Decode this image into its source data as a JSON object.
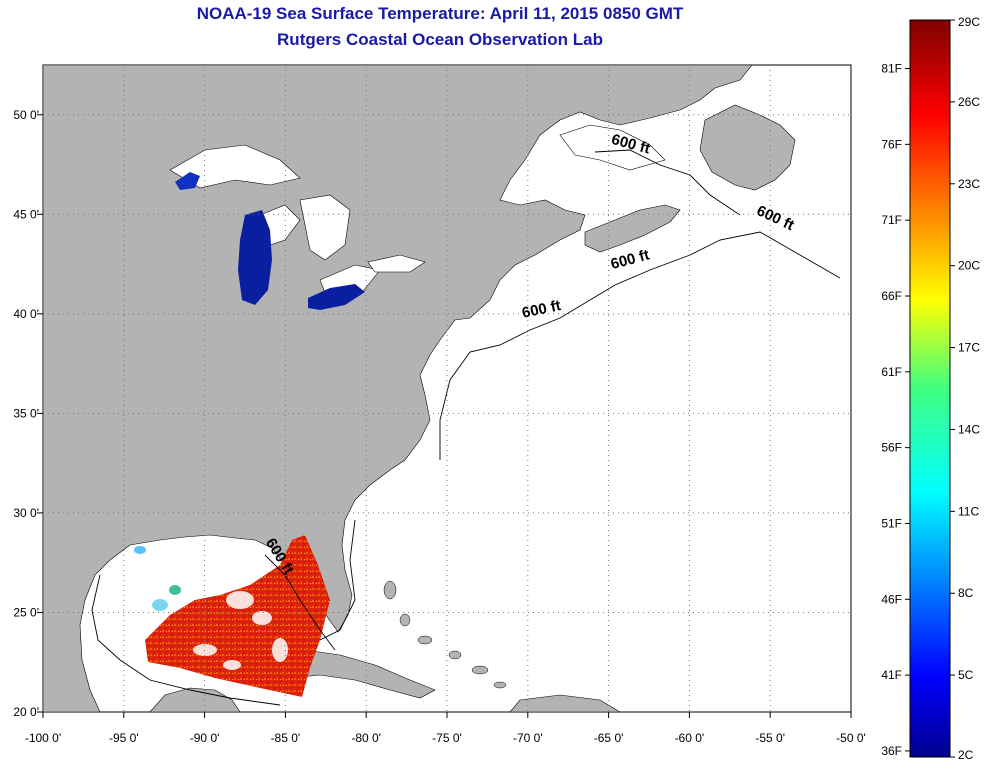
{
  "header": {
    "title": "NOAA-19 Sea Surface Temperature:  April 11, 2015 0850 GMT",
    "subtitle": "Rutgers Coastal Ocean Observation Lab"
  },
  "map": {
    "lon_range": [
      -100,
      -50
    ],
    "lat_range": [
      20,
      52.5
    ],
    "lon_ticks": [
      "-100 0'",
      "-95 0'",
      "-90 0'",
      "-85 0'",
      "-80 0'",
      "-75 0'",
      "-70 0'",
      "-65 0'",
      "-60 0'",
      "-55 0'",
      "-50 0'"
    ],
    "lon_tick_values": [
      -100,
      -95,
      -90,
      -85,
      -80,
      -75,
      -70,
      -65,
      -60,
      -55,
      -50
    ],
    "lat_ticks": [
      "50 0'",
      "45 0'",
      "40 0'",
      "35 0'",
      "30 0'",
      "25 0'",
      "20 0'"
    ],
    "lat_tick_values": [
      50,
      45,
      40,
      35,
      30,
      25,
      20
    ],
    "contour_labels": [
      {
        "text": "600 ft",
        "lon": -63.7,
        "lat": 48.3,
        "angle": 15
      },
      {
        "text": "600 ft",
        "lon": -54.8,
        "lat": 44.6,
        "angle": 25
      },
      {
        "text": "600 ft",
        "lon": -63.6,
        "lat": 42.5,
        "angle": -15
      },
      {
        "text": "600 ft",
        "lon": -69.1,
        "lat": 40.0,
        "angle": -12
      },
      {
        "text": "600 ft",
        "lon": -85.6,
        "lat": 27.7,
        "angle": 58
      }
    ],
    "colors": {
      "land": "#b3b3b3",
      "water": "#ffffff",
      "lake_cold": "#0a1fa0",
      "grid": "#777777"
    }
  },
  "colorbar": {
    "min_c": 2,
    "max_c": 29,
    "celsius_labels": [
      "29C",
      "26C",
      "23C",
      "20C",
      "17C",
      "14C",
      "11C",
      "8C",
      "5C",
      "2C"
    ],
    "celsius_values": [
      29,
      26,
      23,
      20,
      17,
      14,
      11,
      8,
      5,
      2
    ],
    "fahrenheit_labels": [
      "81F",
      "76F",
      "71F",
      "66F",
      "61F",
      "56F",
      "51F",
      "46F",
      "41F",
      "36F"
    ],
    "fahrenheit_values": [
      81,
      76,
      71,
      66,
      61,
      56,
      51,
      46,
      41,
      36
    ]
  }
}
